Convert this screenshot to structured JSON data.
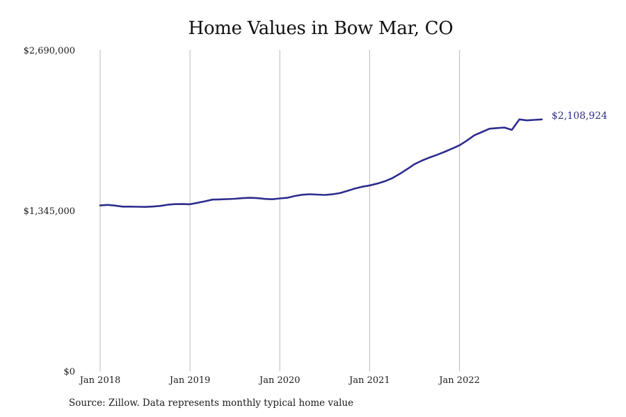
{
  "chart_data": {
    "type": "line",
    "title": "Home Values in Bow Mar, CO",
    "xlabel": "",
    "ylabel": "",
    "ylim": [
      0,
      2690000
    ],
    "y_ticks": [
      {
        "value": 0,
        "label": "$0"
      },
      {
        "value": 1345000,
        "label": "$1,345,000"
      },
      {
        "value": 2690000,
        "label": "$2,690,000"
      }
    ],
    "x_ticks": [
      "Jan 2018",
      "Jan 2019",
      "Jan 2020",
      "Jan 2021",
      "Jan 2022"
    ],
    "xlim": [
      "2018-01",
      "2022-12"
    ],
    "grid": "vertical",
    "line_color": "#2e2c8c",
    "series": [
      {
        "x": [
          "2018-01",
          "2018-02",
          "2018-03",
          "2018-04",
          "2018-05",
          "2018-06",
          "2018-07",
          "2018-08",
          "2018-09",
          "2018-10",
          "2018-11",
          "2018-12",
          "2019-01",
          "2019-02",
          "2019-03",
          "2019-04",
          "2019-05",
          "2019-06",
          "2019-07",
          "2019-08",
          "2019-09",
          "2019-10",
          "2019-11",
          "2019-12",
          "2020-01",
          "2020-02",
          "2020-03",
          "2020-04",
          "2020-05",
          "2020-06",
          "2020-07",
          "2020-08",
          "2020-09",
          "2020-10",
          "2020-11",
          "2020-12",
          "2021-01",
          "2021-02",
          "2021-03",
          "2021-04",
          "2021-05",
          "2021-06",
          "2021-07",
          "2021-08",
          "2021-09",
          "2021-10",
          "2021-11",
          "2021-12",
          "2022-01",
          "2022-02",
          "2022-03",
          "2022-04",
          "2022-05",
          "2022-06",
          "2022-07",
          "2022-08",
          "2022-09",
          "2022-10",
          "2022-11",
          "2022-12"
        ],
        "values": [
          1388000,
          1393000,
          1387000,
          1378000,
          1378000,
          1377000,
          1376000,
          1379000,
          1384000,
          1394000,
          1399000,
          1400000,
          1398000,
          1410000,
          1423000,
          1437000,
          1439000,
          1441000,
          1444000,
          1449000,
          1452000,
          1449000,
          1443000,
          1440000,
          1447000,
          1452000,
          1467000,
          1478000,
          1482000,
          1479000,
          1476000,
          1481000,
          1491000,
          1509000,
          1529000,
          1545000,
          1556000,
          1571000,
          1590000,
          1616000,
          1652000,
          1692000,
          1734000,
          1764000,
          1790000,
          1812000,
          1837000,
          1864000,
          1892000,
          1932000,
          1976000,
          2003000,
          2031000,
          2036000,
          2041000,
          2021000,
          2109000,
          2101000,
          2105000,
          2108924
        ]
      }
    ],
    "end_label": "$2,108,924"
  },
  "source_note": "Source: Zillow. Data represents monthly typical home value"
}
